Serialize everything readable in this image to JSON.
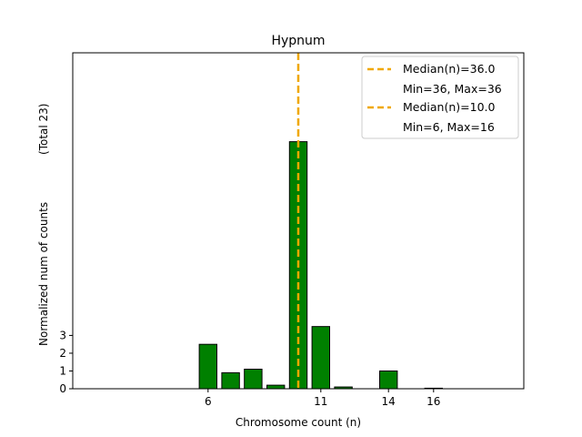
{
  "chart_data": {
    "type": "bar",
    "title": "Hypnum",
    "xlabel": "Chromosome count (n)",
    "ylabel": "Normalized num of counts",
    "ylabel_note": "(Total 23)",
    "x_ticks": [
      6,
      11,
      14,
      16
    ],
    "y_ticks": [
      0,
      1,
      2,
      3
    ],
    "xlim": [
      0,
      20
    ],
    "ylim": [
      0,
      18.9
    ],
    "bar_color": "#008000",
    "bars": [
      {
        "x": 6,
        "value": 2.5
      },
      {
        "x": 7,
        "value": 0.9
      },
      {
        "x": 8,
        "value": 1.1
      },
      {
        "x": 9,
        "value": 0.2
      },
      {
        "x": 10,
        "value": 13.9
      },
      {
        "x": 11,
        "value": 3.5
      },
      {
        "x": 12,
        "value": 0.1
      },
      {
        "x": 14,
        "value": 1.0
      },
      {
        "x": 16,
        "value": 0.03
      }
    ],
    "median_lines": [
      {
        "x": 10.0,
        "color": "#f0a800",
        "style": "dashed"
      }
    ],
    "legend": {
      "placement": "top-right",
      "entries": [
        {
          "line": "Median(n)=36.0",
          "sub": "Min=36, Max=36",
          "color": "#f0a800"
        },
        {
          "line": "Median(n)=10.0",
          "sub": "Min=6, Max=16",
          "color": "#f0a800"
        }
      ]
    }
  }
}
